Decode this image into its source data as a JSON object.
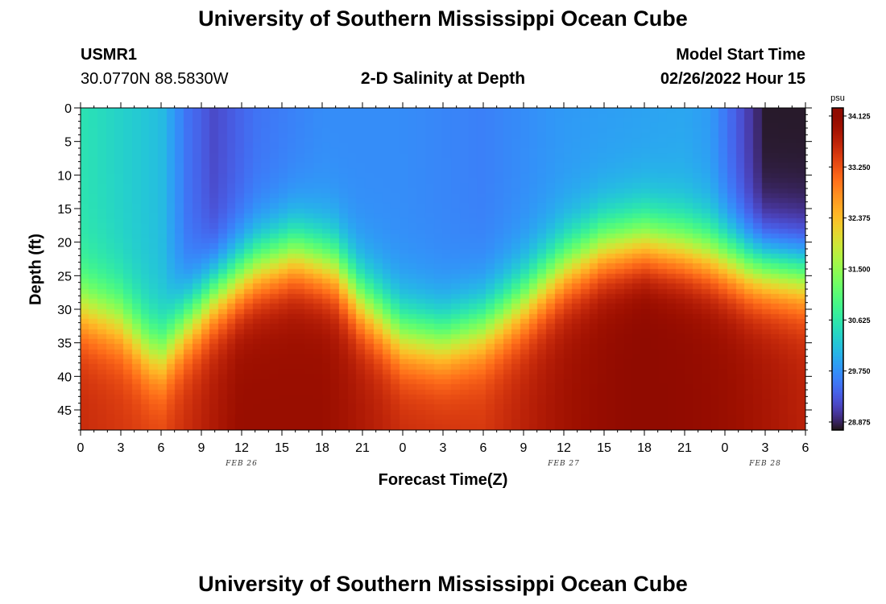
{
  "header": {
    "title": "University of Southern Mississippi Ocean Cube",
    "station_id": "USMR1",
    "station_coords": "30.0770N  88.5830W",
    "plot_title": "2-D Salinity at Depth",
    "model_start_label": "Model Start Time",
    "model_start_value": "02/26/2022 Hour 15"
  },
  "footer": {
    "title": "University of Southern Mississippi Ocean Cube"
  },
  "chart_data": {
    "type": "heatmap",
    "title": "2-D Salinity at Depth",
    "xlabel": "Forecast Time(Z)",
    "ylabel": "Depth (ft)",
    "x_tick_labels": [
      "0",
      "3",
      "6",
      "9",
      "12",
      "15",
      "18",
      "21",
      "0",
      "3",
      "6",
      "9",
      "12",
      "15",
      "18",
      "21",
      "0",
      "3",
      "6"
    ],
    "x_range_hours": [
      0,
      54
    ],
    "y_ticks": [
      0,
      5,
      10,
      15,
      20,
      25,
      30,
      35,
      40,
      45
    ],
    "y_range": [
      0,
      48
    ],
    "y_inverted": true,
    "date_labels": [
      {
        "text": "FEB 26",
        "hour": 12
      },
      {
        "text": "FEB 27",
        "hour": 36
      },
      {
        "text": "FEB 28",
        "hour": 51
      }
    ],
    "colorbar": {
      "unit": "psu",
      "min": 28.875,
      "max": 34.125,
      "tick_labels": [
        "34.125",
        "33.250",
        "32.375",
        "31.500",
        "30.625",
        "29.750",
        "28.875"
      ],
      "colormap": "turbo"
    },
    "halocline_depth_ft": [
      {
        "hour": 0,
        "depth": 30
      },
      {
        "hour": 3,
        "depth": 32
      },
      {
        "hour": 5,
        "depth": 36
      },
      {
        "hour": 6,
        "depth": 37
      },
      {
        "hour": 8,
        "depth": 32
      },
      {
        "hour": 10,
        "depth": 28
      },
      {
        "hour": 13,
        "depth": 24
      },
      {
        "hour": 16,
        "depth": 22
      },
      {
        "hour": 19,
        "depth": 24
      },
      {
        "hour": 21,
        "depth": 29
      },
      {
        "hour": 24,
        "depth": 34
      },
      {
        "hour": 27,
        "depth": 35
      },
      {
        "hour": 30,
        "depth": 33
      },
      {
        "hour": 33,
        "depth": 29
      },
      {
        "hour": 36,
        "depth": 24
      },
      {
        "hour": 39,
        "depth": 21
      },
      {
        "hour": 42,
        "depth": 20
      },
      {
        "hour": 45,
        "depth": 21
      },
      {
        "hour": 47,
        "depth": 22
      },
      {
        "hour": 50,
        "depth": 24
      },
      {
        "hour": 54,
        "depth": 25
      }
    ],
    "surface_salinity_psu": [
      {
        "hour": 0,
        "value": 30.6
      },
      {
        "hour": 6,
        "value": 30.2
      },
      {
        "hour": 8,
        "value": 29.6
      },
      {
        "hour": 10,
        "value": 29.3
      },
      {
        "hour": 13,
        "value": 29.6
      },
      {
        "hour": 18,
        "value": 29.8
      },
      {
        "hour": 24,
        "value": 29.8
      },
      {
        "hour": 30,
        "value": 29.7
      },
      {
        "hour": 36,
        "value": 29.9
      },
      {
        "hour": 45,
        "value": 30.0
      },
      {
        "hour": 47,
        "value": 29.9
      },
      {
        "hour": 49,
        "value": 29.4
      },
      {
        "hour": 51,
        "value": 28.9
      },
      {
        "hour": 54,
        "value": 28.9
      }
    ],
    "bottom_salinity_psu": [
      {
        "hour": 0,
        "value": 33.5
      },
      {
        "hour": 6,
        "value": 33.3
      },
      {
        "hour": 12,
        "value": 33.9
      },
      {
        "hour": 18,
        "value": 33.9
      },
      {
        "hour": 24,
        "value": 33.5
      },
      {
        "hour": 30,
        "value": 33.4
      },
      {
        "hour": 36,
        "value": 33.8
      },
      {
        "hour": 42,
        "value": 34.1
      },
      {
        "hour": 48,
        "value": 33.9
      },
      {
        "hour": 54,
        "value": 33.6
      }
    ]
  }
}
